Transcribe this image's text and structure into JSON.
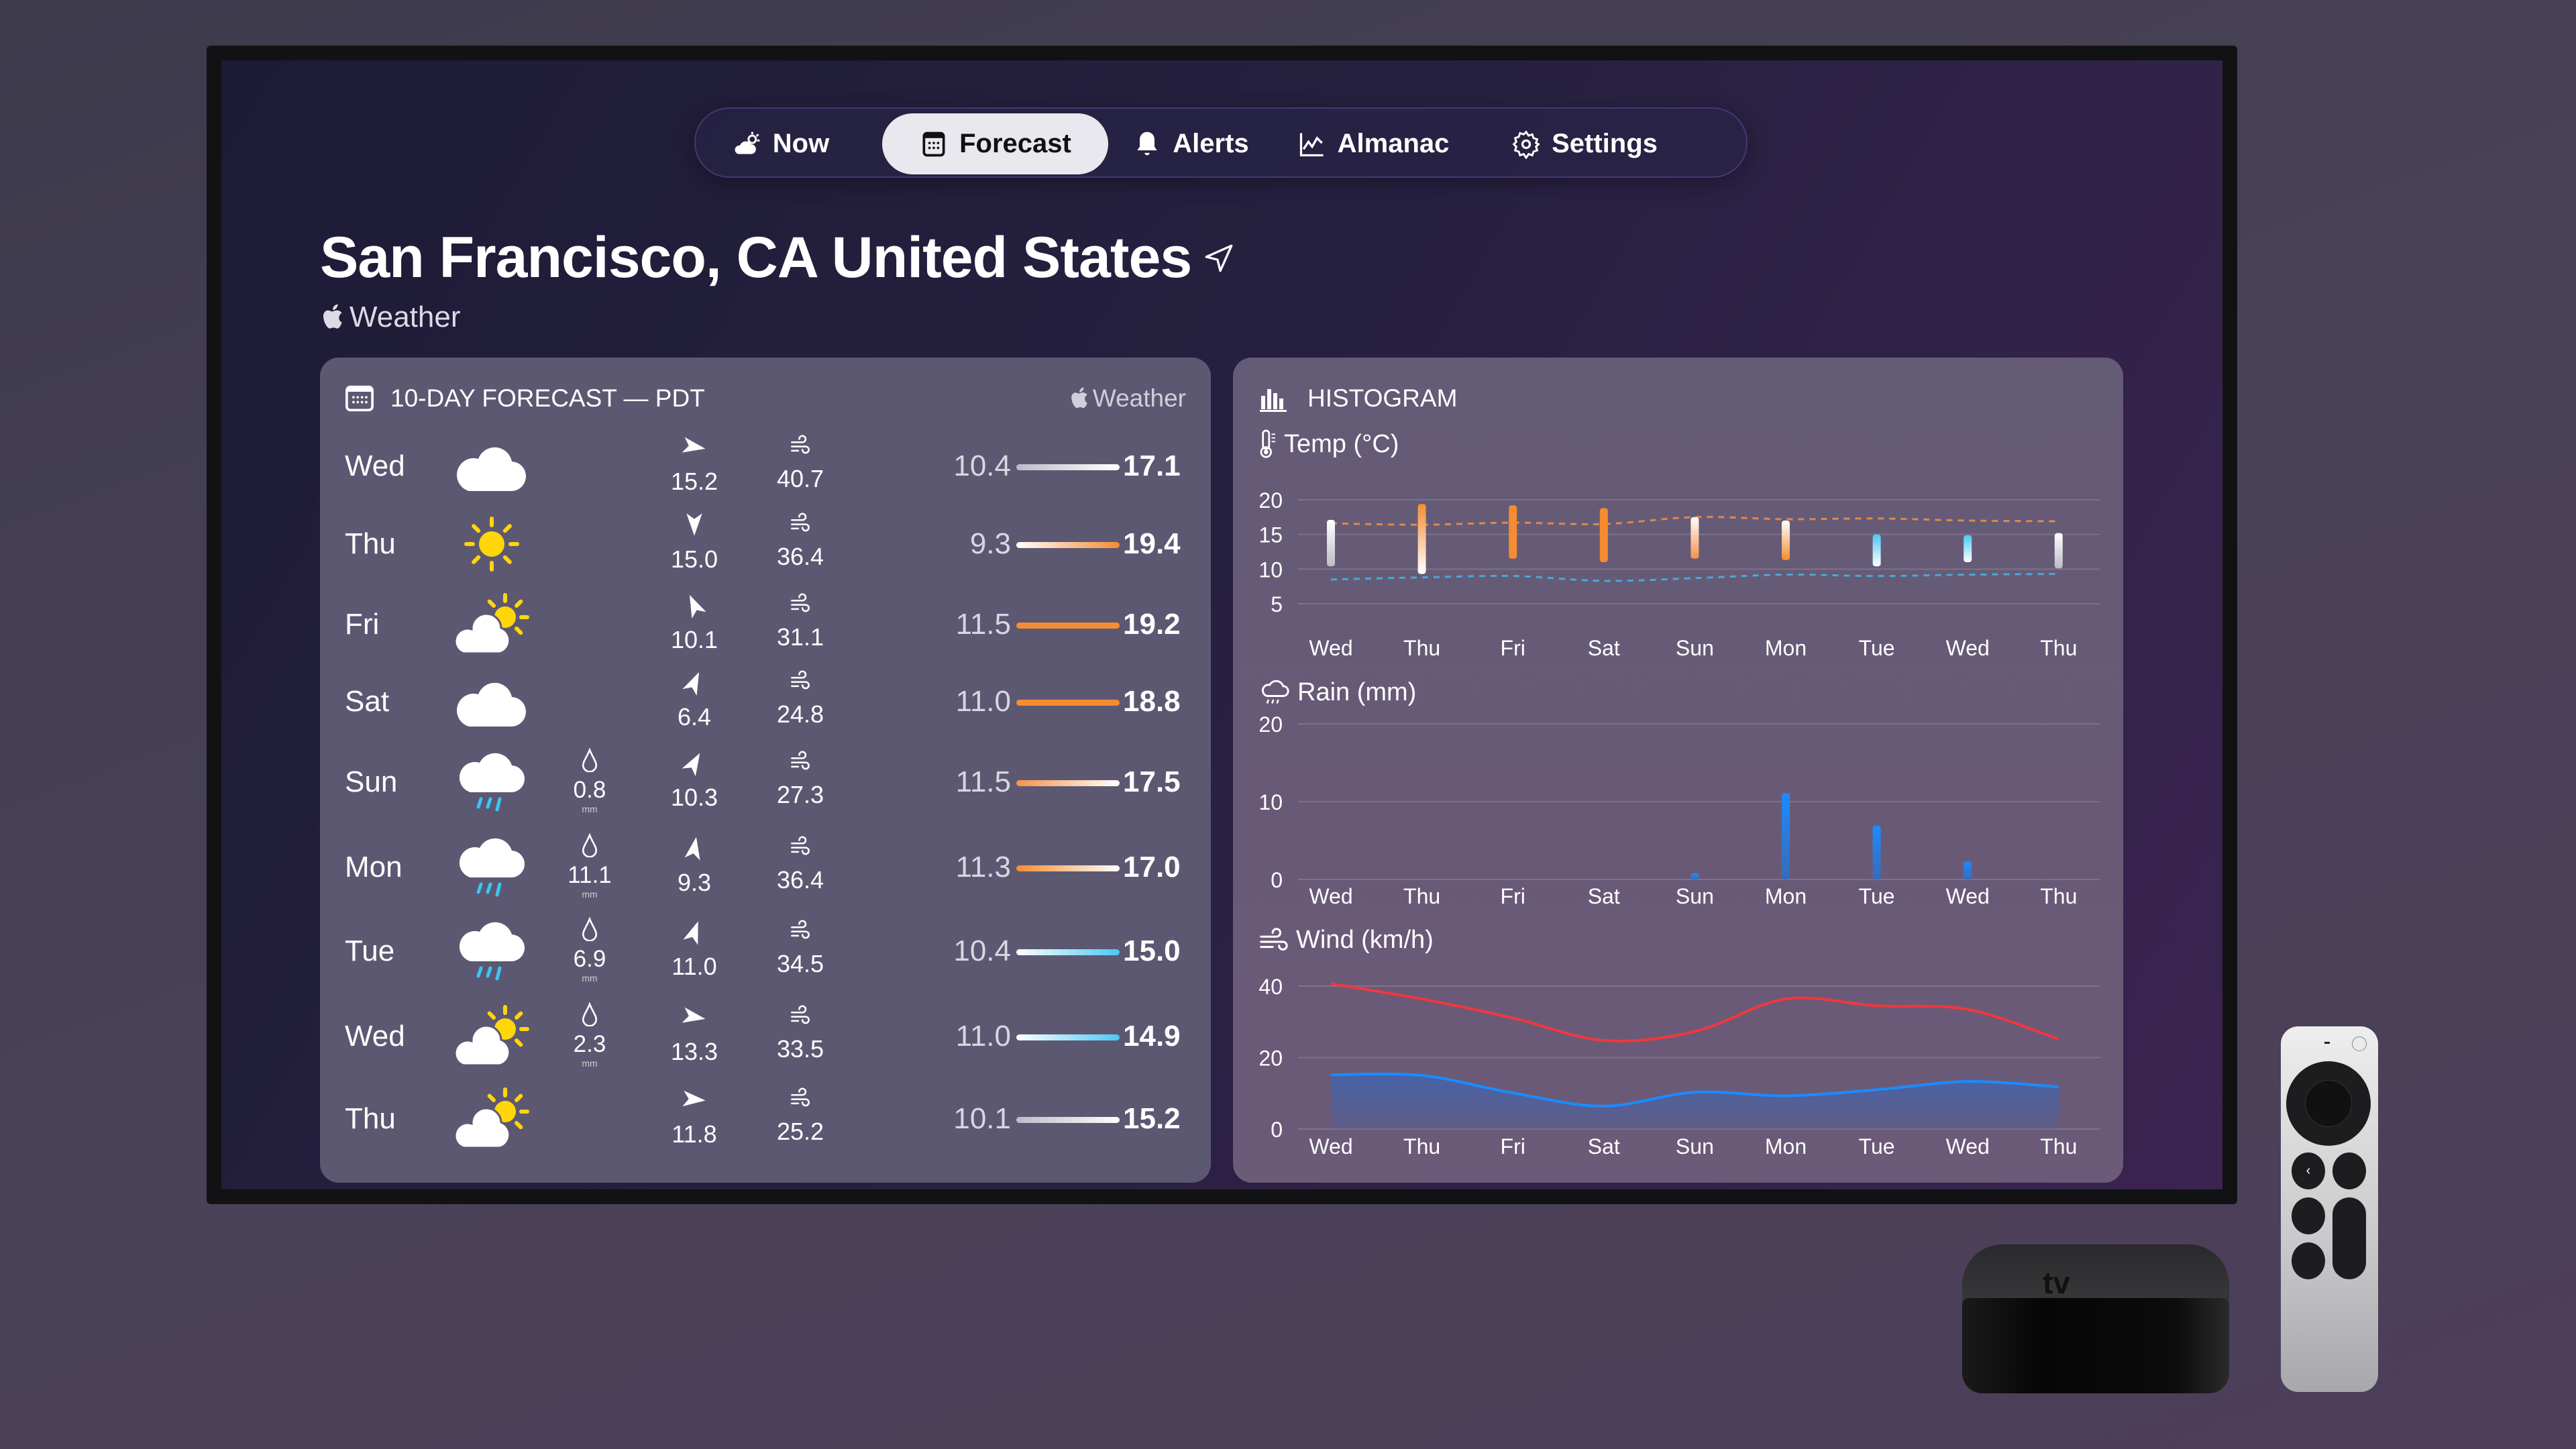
{
  "nav": {
    "tabs": [
      {
        "label": "Now",
        "icon": "sun-cloud-icon"
      },
      {
        "label": "Forecast",
        "icon": "calendar-icon",
        "active": true
      },
      {
        "label": "Alerts",
        "icon": "bell-icon"
      },
      {
        "label": "Almanac",
        "icon": "chart-line-icon"
      },
      {
        "label": "Settings",
        "icon": "gear-icon"
      }
    ]
  },
  "header": {
    "location": "San Francisco, CA United States",
    "brand": "Weather"
  },
  "forecast": {
    "title": "10-DAY FORECAST — PDT",
    "brand": "Weather",
    "rain_unit": "mm",
    "rows": [
      {
        "day": "Wed",
        "icon": "cloud",
        "rain": null,
        "wind_dir_deg": 100,
        "wind": "15.2",
        "gust": "40.7",
        "low": "10.4",
        "high": "17.1",
        "colors": [
          "#bdbbc8",
          "#ffffff"
        ]
      },
      {
        "day": "Thu",
        "icon": "sun",
        "rain": null,
        "wind_dir_deg": 180,
        "wind": "15.0",
        "gust": "36.4",
        "low": "9.3",
        "high": "19.4",
        "colors": [
          "#ffffff",
          "#f58c32"
        ]
      },
      {
        "day": "Fri",
        "icon": "partly-cloudy",
        "rain": null,
        "wind_dir_deg": -25,
        "wind": "10.1",
        "gust": "31.1",
        "low": "11.5",
        "high": "19.2",
        "colors": [
          "#f58c32",
          "#f58c32"
        ]
      },
      {
        "day": "Sat",
        "icon": "cloud",
        "rain": null,
        "wind_dir_deg": 25,
        "wind": "6.4",
        "gust": "24.8",
        "low": "11.0",
        "high": "18.8",
        "colors": [
          "#f58c32",
          "#f58c32"
        ]
      },
      {
        "day": "Sun",
        "icon": "rain",
        "rain": "0.8",
        "wind_dir_deg": 30,
        "wind": "10.3",
        "gust": "27.3",
        "low": "11.5",
        "high": "17.5",
        "colors": [
          "#f5924a",
          "#ffffff"
        ]
      },
      {
        "day": "Mon",
        "icon": "rain",
        "rain": "11.1",
        "wind_dir_deg": 10,
        "wind": "9.3",
        "gust": "36.4",
        "low": "11.3",
        "high": "17.0",
        "colors": [
          "#f58c32",
          "#ffffff"
        ]
      },
      {
        "day": "Tue",
        "icon": "rain",
        "rain": "6.9",
        "wind_dir_deg": 20,
        "wind": "11.0",
        "gust": "34.5",
        "low": "10.4",
        "high": "15.0",
        "colors": [
          "#ffffff",
          "#4cc8f4"
        ]
      },
      {
        "day": "Wed",
        "icon": "partly-cloudy",
        "rain": "2.3",
        "wind_dir_deg": 100,
        "wind": "13.3",
        "gust": "33.5",
        "low": "11.0",
        "high": "14.9",
        "colors": [
          "#ffffff",
          "#4cc8f4"
        ]
      },
      {
        "day": "Thu",
        "icon": "partly-cloudy",
        "rain": null,
        "wind_dir_deg": 95,
        "wind": "11.8",
        "gust": "25.2",
        "low": "10.1",
        "high": "15.2",
        "colors": [
          "#bdbbc8",
          "#ffffff"
        ]
      }
    ]
  },
  "histogram": {
    "title": "HISTOGRAM"
  },
  "chart_data": [
    {
      "type": "bar",
      "title": "Temp (°C)",
      "categories": [
        "Wed",
        "Thu",
        "Fri",
        "Sat",
        "Sun",
        "Mon",
        "Tue",
        "Wed",
        "Thu"
      ],
      "ylim": [
        5,
        20
      ],
      "yticks": [
        "20",
        "15",
        "10",
        "5"
      ],
      "grid": true,
      "series": [
        {
          "low": [
            10.4,
            9.3,
            11.5,
            11.0,
            11.5,
            11.3,
            10.4,
            11.0,
            10.1
          ],
          "high": [
            17.1,
            19.4,
            19.2,
            18.8,
            17.5,
            17.0,
            15.0,
            14.9,
            15.2
          ]
        }
      ],
      "lines": [
        {
          "values": [
            16.6,
            16.4,
            16.7,
            16.5,
            17.5,
            17.2,
            17.3,
            17.0,
            16.9
          ],
          "color": "#e0884a",
          "dashed": true
        },
        {
          "values": [
            8.5,
            8.8,
            9.0,
            8.3,
            8.7,
            9.2,
            9.0,
            9.2,
            9.3
          ],
          "color": "#4aa8d8",
          "dashed": true
        }
      ]
    },
    {
      "type": "bar",
      "title": "Rain (mm)",
      "categories": [
        "Wed",
        "Thu",
        "Fri",
        "Sat",
        "Sun",
        "Mon",
        "Tue",
        "Wed",
        "Thu"
      ],
      "ylim": [
        0,
        20
      ],
      "yticks": [
        "20",
        "10",
        "0"
      ],
      "grid": true,
      "values": [
        0,
        0,
        0,
        0,
        0.8,
        11.1,
        6.9,
        2.3,
        0
      ],
      "color": "#1a8cff"
    },
    {
      "type": "line",
      "title": "Wind (km/h)",
      "categories": [
        "Wed",
        "Thu",
        "Fri",
        "Sat",
        "Sun",
        "Mon",
        "Tue",
        "Wed",
        "Thu"
      ],
      "ylim": [
        0,
        40
      ],
      "yticks": [
        "40",
        "20",
        "0"
      ],
      "grid": true,
      "series": [
        {
          "values": [
            40.7,
            36.4,
            31.1,
            24.8,
            27.3,
            36.4,
            34.5,
            33.5,
            25.2
          ],
          "color": "#f0383c"
        },
        {
          "values": [
            15.2,
            15.0,
            10.1,
            6.4,
            10.3,
            9.3,
            11.0,
            13.3,
            11.8
          ],
          "color": "#1a8cff",
          "area": true
        }
      ]
    }
  ],
  "device": {
    "box_logo": "tv"
  }
}
